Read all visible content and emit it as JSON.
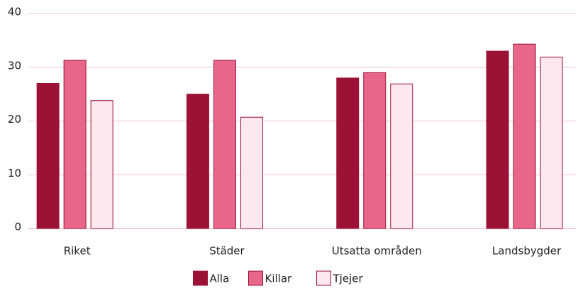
{
  "chart_data": {
    "type": "bar",
    "categories": [
      "Riket",
      "Städer",
      "Utsatta områden",
      "Landsbygder"
    ],
    "series": [
      {
        "name": "Alla",
        "color": "#9b1236",
        "values": [
          27,
          25,
          28,
          33
        ]
      },
      {
        "name": "Killar",
        "color": "#e8668a",
        "values": [
          31.3,
          31.3,
          29,
          34.3
        ]
      },
      {
        "name": "Tjejer",
        "color": "#fce8ee",
        "values": [
          23.8,
          20.7,
          26.9,
          31.9
        ]
      }
    ],
    "ylim": [
      0,
      40
    ],
    "yticks": [
      0,
      10,
      20,
      30,
      40
    ],
    "grid": true,
    "legend": "bottom"
  }
}
